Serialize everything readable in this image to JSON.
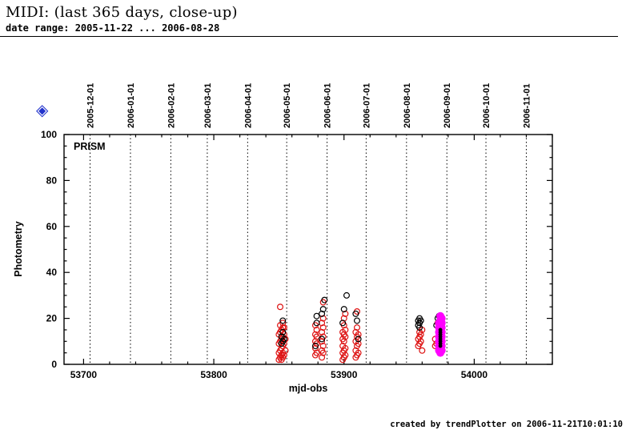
{
  "header": {
    "title": "MIDI: (last 365 days, close-up)",
    "subtitle": "date range: 2005-11-22 ... 2006-08-28"
  },
  "icons": {
    "diamond": "◈"
  },
  "footer": {
    "credit": "created by trendPlotter on 2006-11-21T10:01:10"
  },
  "chart_data": {
    "type": "scatter",
    "title_inside": "PRISM",
    "xlabel": "mjd-obs",
    "ylabel": "Photometry",
    "xlim": [
      53685,
      54060
    ],
    "ylim": [
      0,
      100
    ],
    "x_ticks": [
      53700,
      53800,
      53900,
      54000
    ],
    "y_ticks": [
      0,
      20,
      40,
      60,
      80,
      100
    ],
    "x_minor_step": 20,
    "y_minor_step": 5,
    "grid_style": "dotted-vertical",
    "legend": "none",
    "gridlines": [
      {
        "label": "2005-12-01",
        "mjd": 53705
      },
      {
        "label": "2006-01-01",
        "mjd": 53736
      },
      {
        "label": "2006-02-01",
        "mjd": 53767
      },
      {
        "label": "2006-03-01",
        "mjd": 53795
      },
      {
        "label": "2006-04-01",
        "mjd": 53826
      },
      {
        "label": "2006-05-01",
        "mjd": 53856
      },
      {
        "label": "2006-06-01",
        "mjd": 53887
      },
      {
        "label": "2006-07-01",
        "mjd": 53917
      },
      {
        "label": "2006-08-01",
        "mjd": 53948
      },
      {
        "label": "2006-09-01",
        "mjd": 53979
      },
      {
        "label": "2006-10-01",
        "mjd": 54009
      },
      {
        "label": "2006-11-01",
        "mjd": 54040
      }
    ],
    "series": [
      {
        "name": "red-open",
        "marker": "open-circle",
        "color": "#dd1111",
        "r": 3.4,
        "points": [
          [
            53850,
            2
          ],
          [
            53850,
            5
          ],
          [
            53850,
            9
          ],
          [
            53850,
            13
          ],
          [
            53851,
            3
          ],
          [
            53851,
            6
          ],
          [
            53851,
            10
          ],
          [
            53851,
            14
          ],
          [
            53851,
            17
          ],
          [
            53851,
            25
          ],
          [
            53852,
            2
          ],
          [
            53852,
            4
          ],
          [
            53852,
            7
          ],
          [
            53852,
            11
          ],
          [
            53852,
            15
          ],
          [
            53853,
            3
          ],
          [
            53853,
            5
          ],
          [
            53853,
            8
          ],
          [
            53853,
            12
          ],
          [
            53853,
            16
          ],
          [
            53853,
            18
          ],
          [
            53854,
            4
          ],
          [
            53854,
            9
          ],
          [
            53854,
            13
          ],
          [
            53854,
            16
          ],
          [
            53855,
            6
          ],
          [
            53855,
            11
          ],
          [
            53878,
            4
          ],
          [
            53878,
            7
          ],
          [
            53878,
            10
          ],
          [
            53878,
            13
          ],
          [
            53878,
            17
          ],
          [
            53879,
            5
          ],
          [
            53879,
            9
          ],
          [
            53879,
            12
          ],
          [
            53879,
            15
          ],
          [
            53883,
            3
          ],
          [
            53883,
            6
          ],
          [
            53883,
            10
          ],
          [
            53883,
            14
          ],
          [
            53883,
            18
          ],
          [
            53884,
            5
          ],
          [
            53884,
            8
          ],
          [
            53884,
            12
          ],
          [
            53884,
            16
          ],
          [
            53884,
            20
          ],
          [
            53884,
            27
          ],
          [
            53899,
            2
          ],
          [
            53899,
            5
          ],
          [
            53899,
            8
          ],
          [
            53899,
            11
          ],
          [
            53899,
            14
          ],
          [
            53900,
            3
          ],
          [
            53900,
            6
          ],
          [
            53900,
            10
          ],
          [
            53900,
            13
          ],
          [
            53900,
            17
          ],
          [
            53900,
            20
          ],
          [
            53901,
            4
          ],
          [
            53901,
            7
          ],
          [
            53901,
            12
          ],
          [
            53901,
            15
          ],
          [
            53901,
            22
          ],
          [
            53909,
            3
          ],
          [
            53909,
            6
          ],
          [
            53909,
            10
          ],
          [
            53909,
            14
          ],
          [
            53910,
            4
          ],
          [
            53910,
            8
          ],
          [
            53910,
            12
          ],
          [
            53910,
            16
          ],
          [
            53910,
            23
          ],
          [
            53911,
            5
          ],
          [
            53911,
            9
          ],
          [
            53911,
            13
          ],
          [
            53957,
            8
          ],
          [
            53957,
            11
          ],
          [
            53958,
            9
          ],
          [
            53958,
            12
          ],
          [
            53958,
            14
          ],
          [
            53959,
            10
          ],
          [
            53959,
            13
          ],
          [
            53960,
            6
          ],
          [
            53960,
            15
          ],
          [
            53970,
            8
          ],
          [
            53970,
            11
          ],
          [
            53971,
            9
          ],
          [
            53972,
            18
          ]
        ]
      },
      {
        "name": "black-open",
        "marker": "open-circle",
        "color": "#000000",
        "r": 3.4,
        "points": [
          [
            53852,
            9
          ],
          [
            53852,
            12
          ],
          [
            53853,
            10
          ],
          [
            53853,
            14
          ],
          [
            53853,
            19
          ],
          [
            53854,
            11
          ],
          [
            53878,
            8
          ],
          [
            53879,
            18
          ],
          [
            53879,
            21
          ],
          [
            53883,
            11
          ],
          [
            53883,
            22
          ],
          [
            53884,
            24
          ],
          [
            53885,
            28
          ],
          [
            53899,
            18
          ],
          [
            53900,
            24
          ],
          [
            53902,
            30
          ],
          [
            53909,
            22
          ],
          [
            53910,
            19
          ],
          [
            53911,
            11
          ],
          [
            53957,
            17
          ],
          [
            53957,
            19
          ],
          [
            53958,
            16
          ],
          [
            53958,
            18
          ],
          [
            53958,
            20
          ],
          [
            53959,
            19
          ],
          [
            53971,
            17
          ],
          [
            53972,
            20
          ],
          [
            53973,
            21
          ]
        ]
      },
      {
        "name": "magenta-filled",
        "marker": "filled-circle",
        "color": "#ff00ff",
        "r": 5,
        "points": [
          [
            53973,
            6
          ],
          [
            53973,
            8
          ],
          [
            53973,
            10
          ],
          [
            53973,
            12
          ],
          [
            53973,
            14
          ],
          [
            53973,
            16
          ],
          [
            53973,
            18
          ],
          [
            53974,
            5
          ],
          [
            53974,
            7
          ],
          [
            53974,
            9
          ],
          [
            53974,
            11
          ],
          [
            53974,
            13
          ],
          [
            53974,
            15
          ],
          [
            53974,
            17
          ],
          [
            53974,
            19
          ],
          [
            53974,
            21
          ],
          [
            53975,
            6
          ],
          [
            53975,
            8
          ],
          [
            53975,
            10
          ],
          [
            53975,
            12
          ],
          [
            53975,
            14
          ],
          [
            53975,
            16
          ],
          [
            53975,
            18
          ],
          [
            53975,
            20
          ]
        ]
      },
      {
        "name": "black-filled",
        "marker": "filled-circle",
        "color": "#000000",
        "r": 2.4,
        "points": [
          [
            53974,
            8
          ],
          [
            53974,
            9
          ],
          [
            53974,
            10
          ],
          [
            53974,
            11
          ],
          [
            53974,
            12
          ],
          [
            53974,
            13
          ],
          [
            53974,
            14
          ],
          [
            53974,
            15
          ]
        ]
      }
    ]
  }
}
